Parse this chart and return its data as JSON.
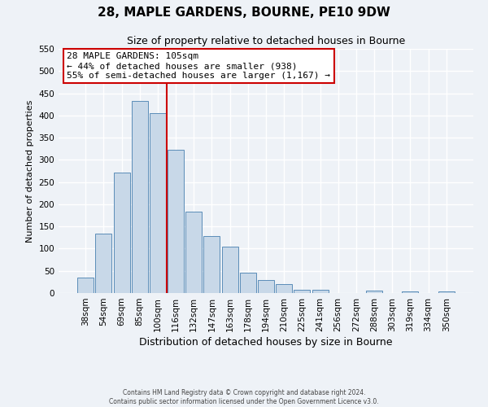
{
  "title": "28, MAPLE GARDENS, BOURNE, PE10 9DW",
  "subtitle": "Size of property relative to detached houses in Bourne",
  "xlabel": "Distribution of detached houses by size in Bourne",
  "ylabel": "Number of detached properties",
  "bar_labels": [
    "38sqm",
    "54sqm",
    "69sqm",
    "85sqm",
    "100sqm",
    "116sqm",
    "132sqm",
    "147sqm",
    "163sqm",
    "178sqm",
    "194sqm",
    "210sqm",
    "225sqm",
    "241sqm",
    "256sqm",
    "272sqm",
    "288sqm",
    "303sqm",
    "319sqm",
    "334sqm",
    "350sqm"
  ],
  "bar_values": [
    35,
    133,
    272,
    432,
    405,
    322,
    183,
    128,
    104,
    45,
    30,
    20,
    8,
    8,
    0,
    0,
    5,
    0,
    3,
    0,
    3
  ],
  "bar_color": "#c8d8e8",
  "bar_edgecolor": "#5b8db8",
  "ylim": [
    0,
    550
  ],
  "yticks": [
    0,
    50,
    100,
    150,
    200,
    250,
    300,
    350,
    400,
    450,
    500,
    550
  ],
  "vline_x": 4.5,
  "vline_color": "#cc0000",
  "annotation_title": "28 MAPLE GARDENS: 105sqm",
  "annotation_line1": "← 44% of detached houses are smaller (938)",
  "annotation_line2": "55% of semi-detached houses are larger (1,167) →",
  "annotation_box_facecolor": "#ffffff",
  "annotation_box_edgecolor": "#cc0000",
  "footer_line1": "Contains HM Land Registry data © Crown copyright and database right 2024.",
  "footer_line2": "Contains public sector information licensed under the Open Government Licence v3.0.",
  "background_color": "#eef2f7",
  "grid_color": "#ffffff"
}
